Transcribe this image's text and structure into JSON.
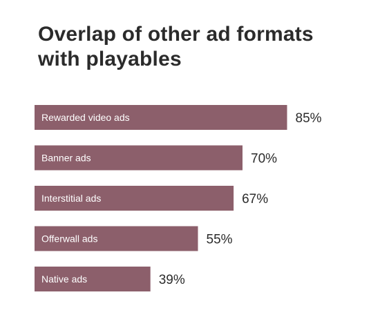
{
  "chart_data": {
    "type": "bar",
    "orientation": "horizontal",
    "title_lines": [
      "Overlap of other ad formats",
      "with playables"
    ],
    "categories": [
      "Rewarded video ads",
      "Banner ads",
      "Interstitial ads",
      "Offerwall ads",
      "Native ads"
    ],
    "values": [
      85,
      70,
      67,
      55,
      39
    ],
    "value_labels": [
      "85%",
      "70%",
      "67%",
      "55%",
      "39%"
    ],
    "xlim": [
      0,
      100
    ],
    "grid": false,
    "legend": "none",
    "bar_color": "#8c5f6b",
    "label_color": "#ffffff",
    "value_color": "#2b2b2b"
  }
}
